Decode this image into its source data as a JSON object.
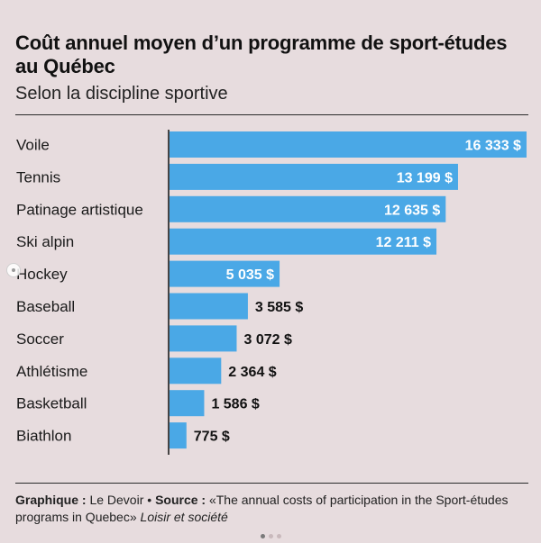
{
  "header": {
    "title": "Coût annuel moyen d’un programme de sport-études au Québec",
    "subtitle": "Selon la discipline sportive"
  },
  "chart_data": {
    "type": "bar",
    "orientation": "horizontal",
    "categories": [
      "Voile",
      "Tennis",
      "Patinage artistique",
      "Ski alpin",
      "Hockey",
      "Baseball",
      "Soccer",
      "Athlétisme",
      "Basketball",
      "Biathlon"
    ],
    "values": [
      16333,
      13199,
      12635,
      12211,
      5035,
      3585,
      3072,
      2364,
      1586,
      775
    ],
    "value_labels": [
      "16 333 $",
      "13 199 $",
      "12 635 $",
      "12 211 $",
      "5 035 $",
      "3 585 $",
      "3 072 $",
      "2 364 $",
      "1 586 $",
      "775 $"
    ],
    "xlim": [
      0,
      16500
    ],
    "grid": false,
    "bar_color": "#4aa8e6",
    "label_inside_color": "#ffffff",
    "label_outside_color": "#111111"
  },
  "footer": {
    "graphic_label": "Graphique :",
    "graphic_value": "Le Devoir",
    "separator": "•",
    "source_label": "Source :",
    "source_text": "«The annual costs of participation in the Sport-études programs in Quebec»",
    "source_journal": "Loisir et société"
  },
  "colors": {
    "background": "#e7dcde",
    "accent": "#4aa8e6"
  }
}
